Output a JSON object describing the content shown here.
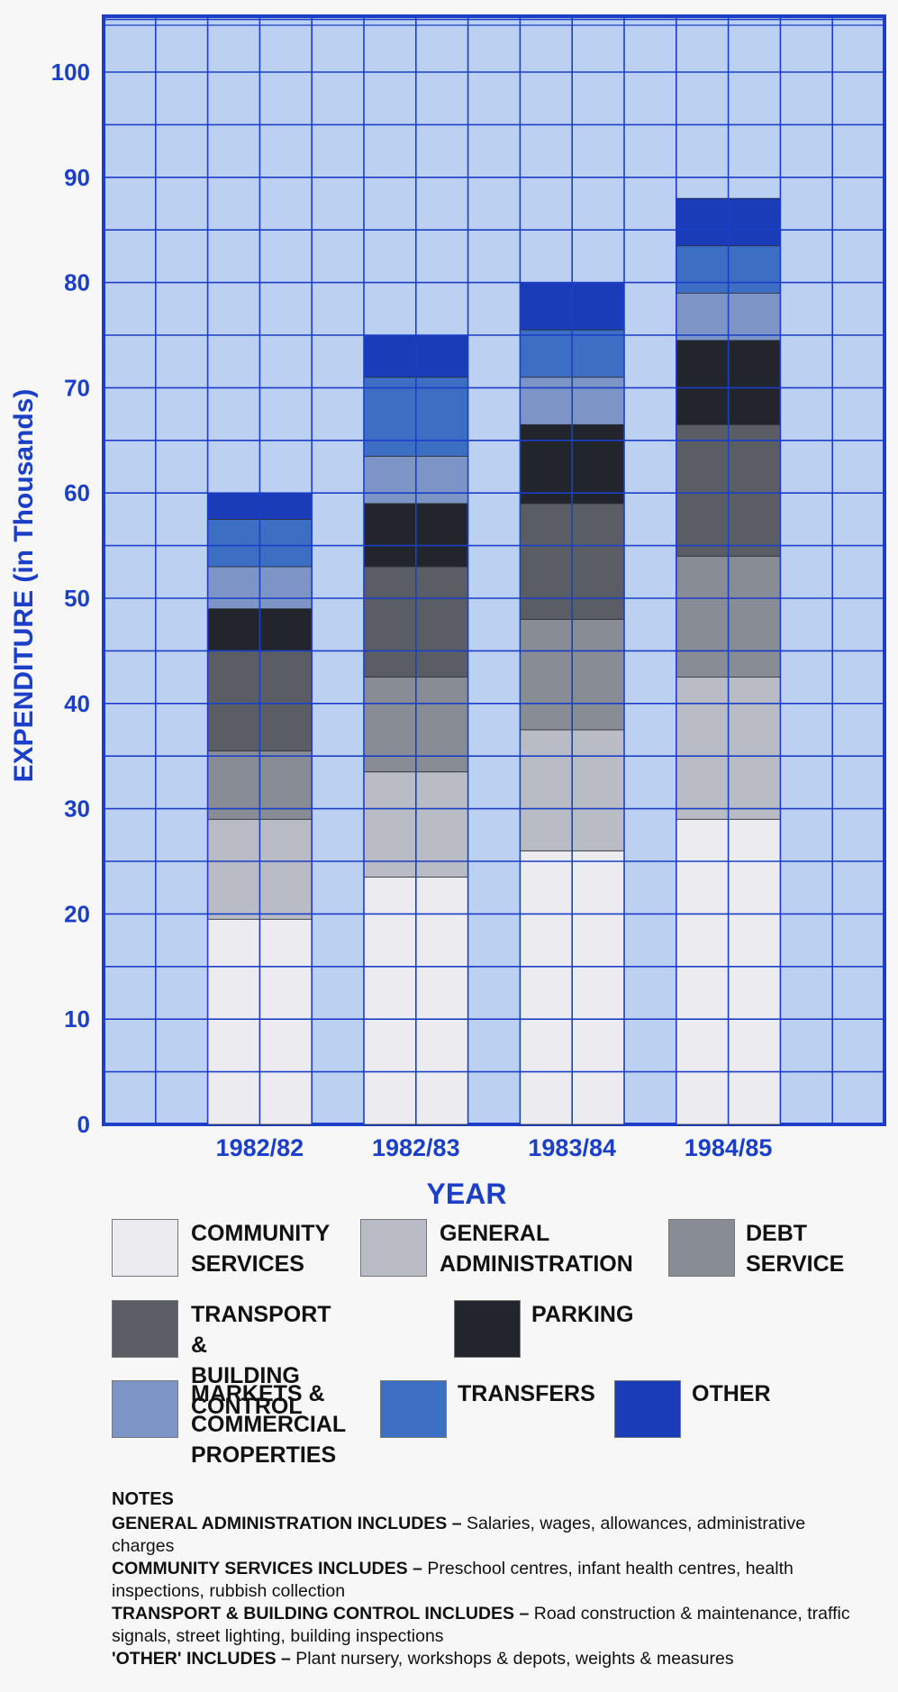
{
  "chart_data": {
    "type": "bar",
    "stacked": true,
    "categories": [
      "1982/82",
      "1982/83",
      "1983/84",
      "1984/85"
    ],
    "series": [
      {
        "name": "COMMUNITY SERVICES",
        "values": [
          19.5,
          23.5,
          26.0,
          29.0
        ],
        "color": "#ececf0"
      },
      {
        "name": "GENERAL ADMINISTRATION",
        "values": [
          9.5,
          10.0,
          11.5,
          13.5
        ],
        "color": "#b9bcc4"
      },
      {
        "name": "DEBT SERVICE",
        "values": [
          6.5,
          9.0,
          10.5,
          11.5
        ],
        "color": "#888c94"
      },
      {
        "name": "TRANSPORT & BUILDING CONTROL",
        "values": [
          9.5,
          10.5,
          11.0,
          12.5
        ],
        "color": "#5a5e64"
      },
      {
        "name": "PARKING",
        "values": [
          4.0,
          6.0,
          7.5,
          8.0
        ],
        "color": "#22262c"
      },
      {
        "name": "MARKETS & COMMERCIAL PROPERTIES",
        "values": [
          4.0,
          4.5,
          4.5,
          4.5
        ],
        "color": "#7d95c6"
      },
      {
        "name": "TRANSFERS",
        "values": [
          4.5,
          7.5,
          4.5,
          4.5
        ],
        "color": "#3c6fc4"
      },
      {
        "name": "OTHER",
        "values": [
          2.5,
          4.0,
          4.5,
          4.5
        ],
        "color": "#1b3cb8"
      }
    ],
    "ylabel": "EXPENDITURE (in Thousands)",
    "xlabel": "YEAR",
    "ylim": [
      0,
      100
    ],
    "yticks": [
      0,
      10,
      20,
      30,
      40,
      50,
      60,
      70,
      80,
      90,
      100
    ],
    "grid": true,
    "legend_position": "bottom"
  },
  "legend": [
    {
      "text": "COMMUNITY\nSERVICES"
    },
    {
      "text": "GENERAL\nADMINISTRATION"
    },
    {
      "text": "DEBT\nSERVICE"
    },
    {
      "text": "TRANSPORT &\nBUILDING CONTROL"
    },
    {
      "text": "PARKING"
    },
    {
      "text": "MARKETS &\nCOMMERCIAL\nPROPERTIES"
    },
    {
      "text": "TRANSFERS"
    },
    {
      "text": "OTHER"
    }
  ],
  "notes": {
    "title": "NOTES",
    "items": [
      {
        "key": "GENERAL ADMINISTRATION INCLUDES – ",
        "value": "Salaries, wages, allowances, administrative charges"
      },
      {
        "key": "COMMUNITY SERVICES INCLUDES – ",
        "value": "Preschool centres, infant health centres, health inspections, rubbish collection"
      },
      {
        "key": "TRANSPORT & BUILDING CONTROL INCLUDES – ",
        "value": "Road construction & maintenance, traffic signals, street lighting, building inspections"
      },
      {
        "key": "'OTHER' INCLUDES – ",
        "value": "Plant nursery, workshops & depots, weights & measures"
      }
    ]
  }
}
